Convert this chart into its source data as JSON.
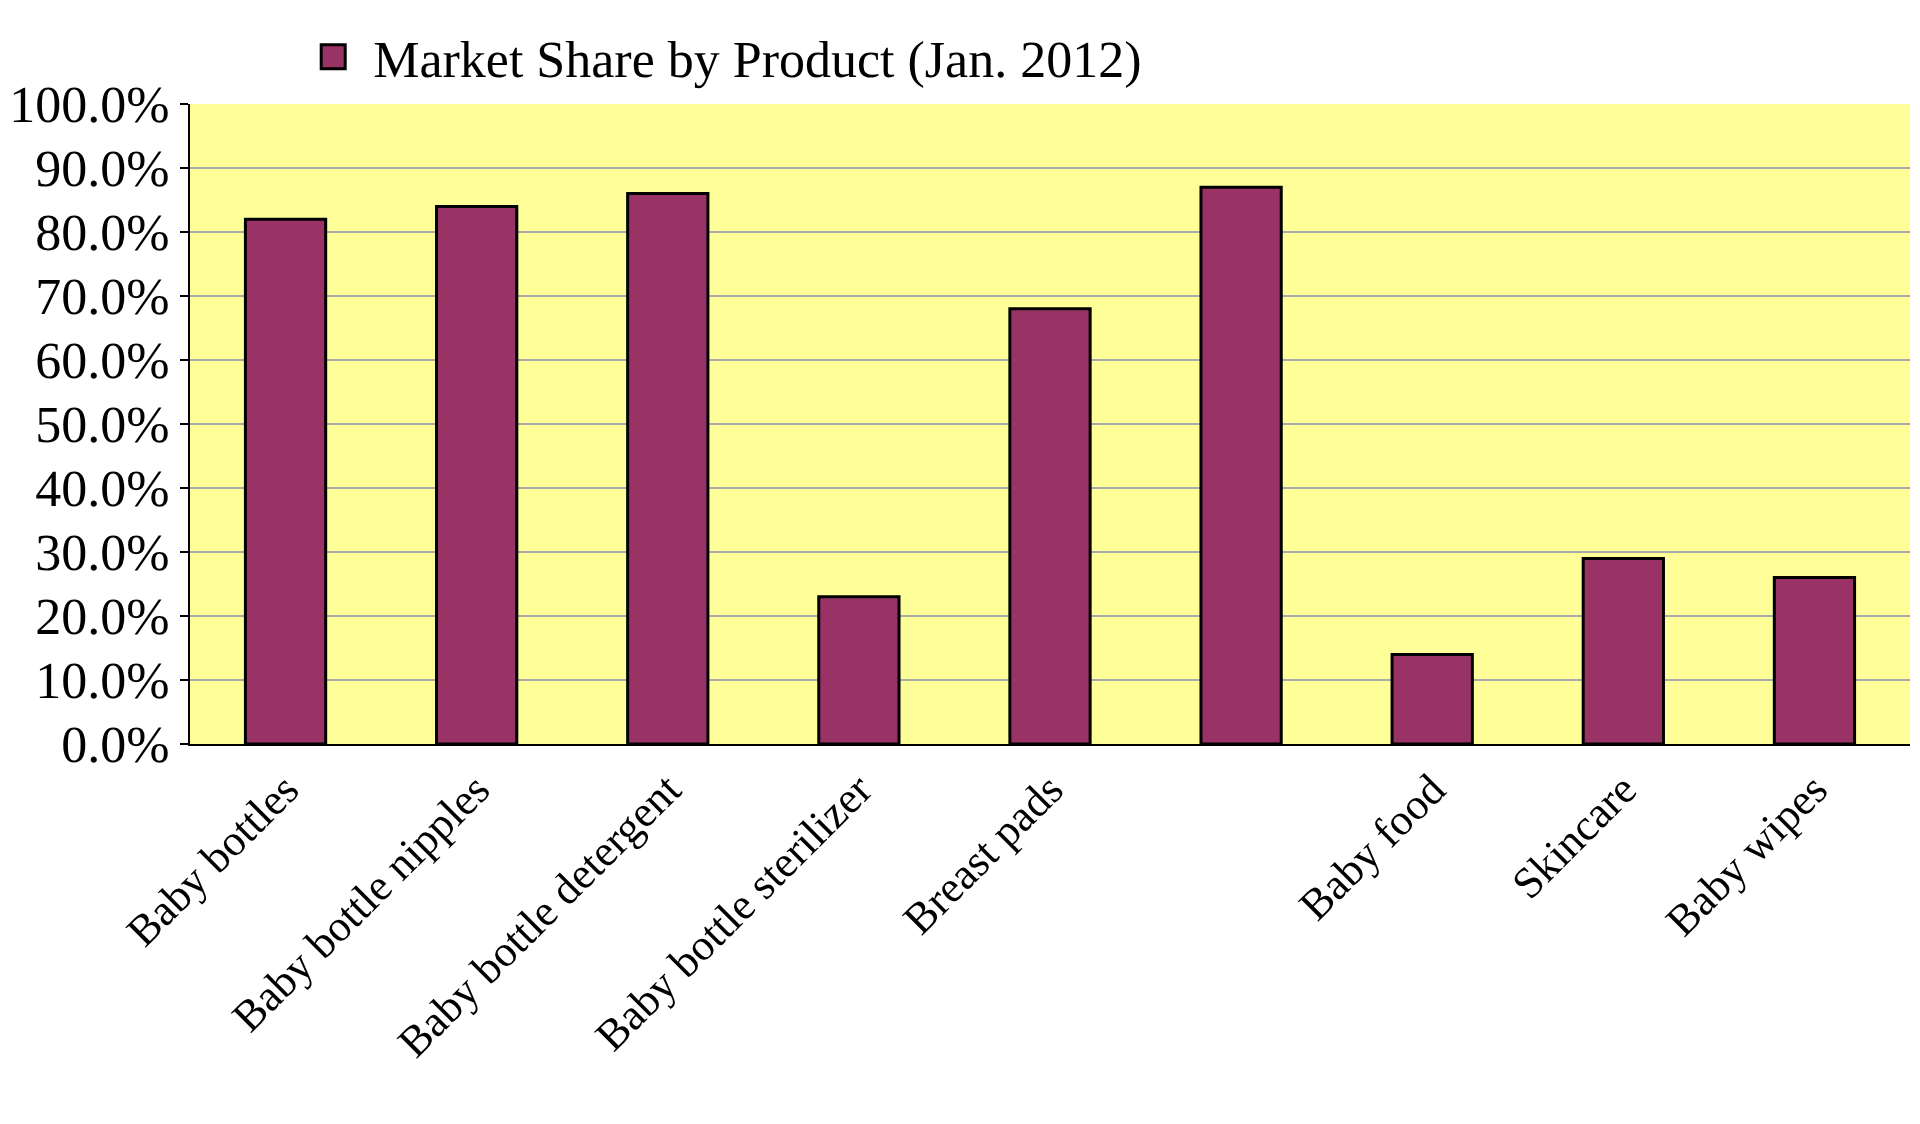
{
  "chart_data": {
    "type": "bar",
    "categories": [
      "Baby bottles",
      "Baby bottle nipples",
      "Baby bottle detergent",
      "Baby bottle sterilizer",
      "Breast pads",
      null,
      "Baby food",
      "Skincare",
      "Baby wipes"
    ],
    "series": [
      {
        "name": "Market Share by Product (Jan. 2012)",
        "color": "#993366",
        "values": [
          82,
          84,
          86,
          23,
          68,
          87,
          14,
          29,
          26
        ]
      }
    ],
    "ylim": [
      0,
      100
    ],
    "yticks": [
      {
        "value": 0,
        "label": "0.0%"
      },
      {
        "value": 10,
        "label": "10.0%"
      },
      {
        "value": 20,
        "label": "20.0%"
      },
      {
        "value": 30,
        "label": "30.0%"
      },
      {
        "value": 40,
        "label": "40.0%"
      },
      {
        "value": 50,
        "label": "50.0%"
      },
      {
        "value": 60,
        "label": "60.0%"
      },
      {
        "value": 70,
        "label": "70.0%"
      },
      {
        "value": 80,
        "label": "80.0%"
      },
      {
        "value": 90,
        "label": "90.0%"
      },
      {
        "value": 100,
        "label": "100.0%"
      }
    ],
    "grid": "y",
    "legend": "top left"
  }
}
